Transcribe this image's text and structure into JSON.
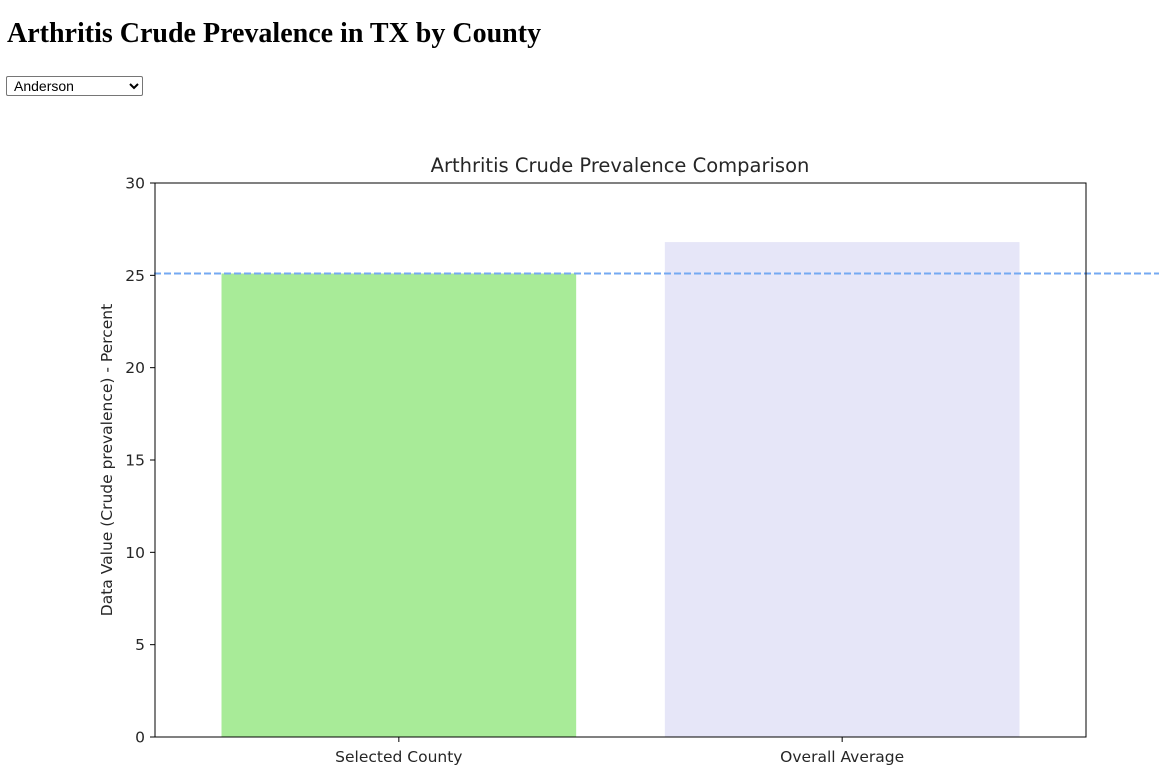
{
  "page": {
    "title": "Arthritis Crude Prevalence in TX by County"
  },
  "county_select": {
    "selected": "Anderson",
    "options": [
      "Anderson"
    ]
  },
  "chart_data": {
    "type": "bar",
    "title": "Arthritis Crude Prevalence Comparison",
    "xlabel": "",
    "ylabel": "Data Value (Crude prevalence) - Percent",
    "categories": [
      "Selected County",
      "Overall Average"
    ],
    "values": [
      25.1,
      26.8
    ],
    "bar_colors": [
      "#a8eb98",
      "#e6e6f8"
    ],
    "reference_line": {
      "value": 25.1,
      "color": "#74a9f2",
      "style": "dashed"
    },
    "ylim": [
      0,
      30
    ],
    "yticks": [
      "0",
      "5",
      "10",
      "15",
      "20",
      "25",
      "30"
    ],
    "grid": false,
    "legend": "none"
  }
}
